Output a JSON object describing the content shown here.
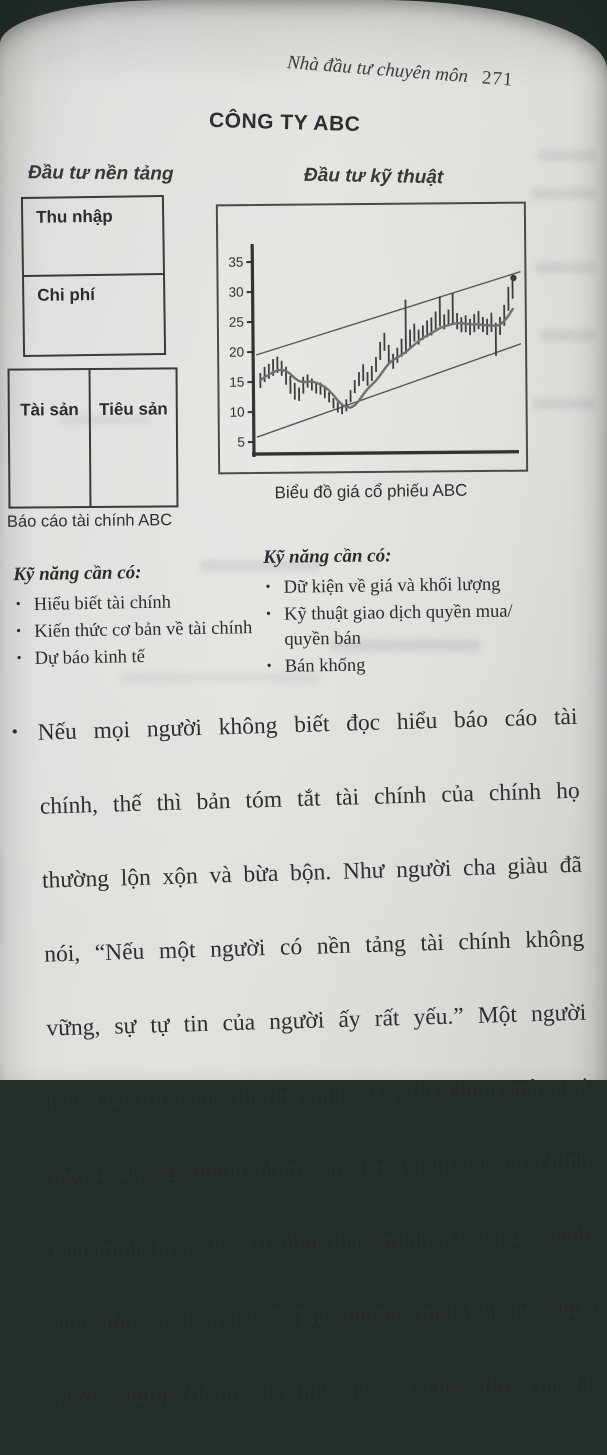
{
  "header": {
    "running_head": "Nhà đầu tư chuyên môn",
    "page_number": "271"
  },
  "title": "CÔNG TY ABC",
  "fundamental": {
    "heading": "Đầu tư nền tảng",
    "income_statement": {
      "income_label": "Thu nhập",
      "expense_label": "Chi phí"
    },
    "balance_sheet": {
      "assets_label": "Tài sản",
      "liabilities_label": "Tiêu sản"
    },
    "caption": "Báo cáo tài chính ABC",
    "skills_heading": "Kỹ năng cần có:",
    "skills": [
      "Hiểu biết tài chính",
      "Kiến thức cơ bản về tài chính",
      "Dự báo kinh tế"
    ]
  },
  "technical": {
    "heading": "Đầu tư kỹ thuật",
    "caption": "Biểu đồ giá cổ phiếu ABC",
    "skills_heading": "Kỹ năng cần có:",
    "skills": [
      "Dữ kiện về giá và khối lượng",
      "Kỹ thuật giao dịch quyền mua/ quyền bán",
      "Bán khống"
    ]
  },
  "body": {
    "marker": "•",
    "lines": [
      "Nếu mọi người không biết đọc hiểu báo cáo tài",
      "chính, thế thì bản tóm tắt tài chính của chính họ",
      "thường lộn xộn và bừa bộn. Như người cha giàu đã",
      "nói, “Nếu một người có nền tảng tài chính không",
      "vững, sự tự tin của người ấy rất yếu.” Một người",
      "bạn của tôi cũng thường nói, “Lý do chính mà mọi",
      "người không muốn nhìn vào bảng tóm tắt tài chính",
      "của mình là vì họ sợ nhìn thấy mình đang mắc bệnh",
      "ung thư về tiền bạc.” Thế nhưng một khi họ chữa",
      "được chứng bệnh tài chính đó, cả cuộc đời còn lại"
    ]
  },
  "bullet_char": "•",
  "colors": {
    "page": "#dedddb",
    "backdrop": "#222d2c",
    "ink": "#2e2e31",
    "chart_bar": "#3d3d40",
    "chart_ma": "#707073",
    "chart_channel": "#58585c"
  },
  "chart_data": {
    "type": "line",
    "title": "Biểu đồ giá cổ phiếu ABC",
    "xlabel": "",
    "ylabel": "",
    "ylim": [
      0,
      38
    ],
    "yticks": [
      5,
      10,
      15,
      20,
      25,
      30,
      35
    ],
    "grid": false,
    "legend": "none",
    "description": "Daily price range bars of ABC stock with moving-average line inside an ascending trend channel",
    "price_bars_low_high": [
      [
        14,
        16.5
      ],
      [
        15,
        17.5
      ],
      [
        15.5,
        18
      ],
      [
        16,
        18.8
      ],
      [
        16.5,
        19.2
      ],
      [
        16,
        18.5
      ],
      [
        14.5,
        17.5
      ],
      [
        13,
        16
      ],
      [
        12,
        14.8
      ],
      [
        11.8,
        14
      ],
      [
        13,
        15.8
      ],
      [
        14,
        16.2
      ],
      [
        13.5,
        15.5
      ],
      [
        13,
        15
      ],
      [
        12.8,
        14.8
      ],
      [
        12.2,
        14.2
      ],
      [
        11.5,
        13.2
      ],
      [
        10.5,
        12.2
      ],
      [
        9.8,
        11.5
      ],
      [
        9.5,
        11
      ],
      [
        10,
        12
      ],
      [
        11.5,
        13.5
      ],
      [
        13,
        15.2
      ],
      [
        14.2,
        16.5
      ],
      [
        15,
        17.8
      ],
      [
        14.2,
        16.5
      ],
      [
        15,
        17.5
      ],
      [
        16.5,
        19
      ],
      [
        18.5,
        21.5
      ],
      [
        20,
        23
      ],
      [
        18,
        21
      ],
      [
        17,
        19.5
      ],
      [
        18,
        20.5
      ],
      [
        19,
        22
      ],
      [
        19.5,
        28.5
      ],
      [
        20.5,
        23.5
      ],
      [
        21.5,
        24.5
      ],
      [
        21,
        23.5
      ],
      [
        21.8,
        24.2
      ],
      [
        22.2,
        25
      ],
      [
        22.5,
        25.5
      ],
      [
        23.5,
        26.5
      ],
      [
        24,
        29
      ],
      [
        23.5,
        26
      ],
      [
        24,
        26.8
      ],
      [
        24.5,
        29.5
      ],
      [
        23.5,
        26.2
      ],
      [
        23,
        25.5
      ],
      [
        23,
        25.8
      ],
      [
        22.5,
        25.2
      ],
      [
        23,
        26
      ],
      [
        23.5,
        26.5
      ],
      [
        23,
        25.5
      ],
      [
        22.5,
        25.2
      ],
      [
        23,
        26.2
      ],
      [
        19,
        24.5
      ],
      [
        22.5,
        25.5
      ],
      [
        24,
        27.5
      ],
      [
        26.5,
        30.5
      ],
      [
        28.5,
        32.3
      ]
    ],
    "moving_average": [
      15.3,
      15.8,
      16.2,
      16.6,
      16.9,
      17.0,
      16.8,
      16.3,
      15.6,
      15.1,
      14.9,
      15.0,
      15.0,
      14.8,
      14.5,
      14.1,
      13.5,
      12.7,
      11.8,
      11.1,
      10.7,
      10.6,
      11.0,
      11.8,
      12.8,
      13.7,
      14.4,
      15.1,
      16.0,
      17.0,
      17.9,
      18.5,
      18.9,
      19.3,
      19.8,
      20.4,
      21.0,
      21.6,
      22.1,
      22.5,
      22.9,
      23.3,
      23.7,
      24.0,
      24.2,
      24.4,
      24.5,
      24.5,
      24.4,
      24.3,
      24.3,
      24.3,
      24.2,
      24.1,
      24.1,
      24.0,
      24.2,
      24.8,
      25.7,
      26.8
    ],
    "trend_channel": {
      "lower_start": 5.8,
      "lower_end": 21,
      "upper_start": 19.5,
      "upper_end": 33
    }
  }
}
